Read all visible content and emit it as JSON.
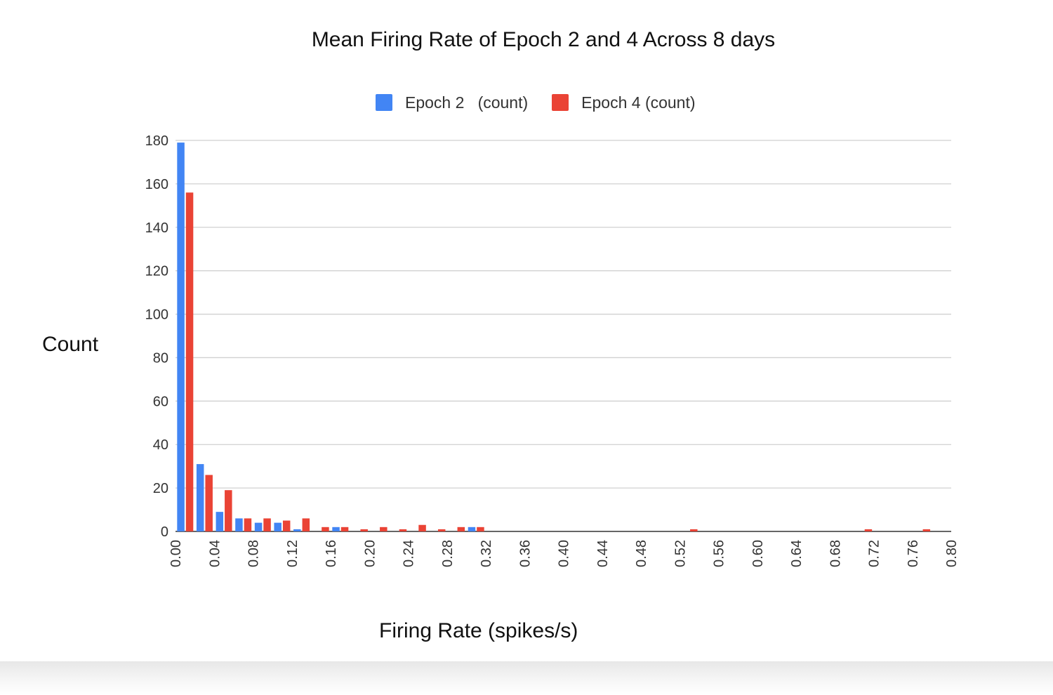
{
  "chart_data": {
    "type": "bar",
    "title": "Mean Firing Rate of Epoch 2 and 4 Across 8 days",
    "xlabel": "Firing Rate (spikes/s)",
    "ylabel": "Count",
    "xlim": [
      0,
      0.8
    ],
    "ylim": [
      0,
      180
    ],
    "bin_width": 0.02,
    "x_ticks": [
      "0.00",
      "0.04",
      "0.08",
      "0.12",
      "0.16",
      "0.20",
      "0.24",
      "0.28",
      "0.32",
      "0.36",
      "0.40",
      "0.44",
      "0.48",
      "0.52",
      "0.56",
      "0.60",
      "0.64",
      "0.68",
      "0.72",
      "0.76",
      "0.80"
    ],
    "y_ticks": [
      "0",
      "20",
      "40",
      "60",
      "80",
      "100",
      "120",
      "140",
      "160",
      "180"
    ],
    "grid": true,
    "legend_position": "top",
    "series": [
      {
        "name": "Epoch 2   (count)",
        "color": "#4285f4",
        "x": [
          0.0,
          0.02,
          0.04,
          0.06,
          0.08,
          0.1,
          0.12,
          0.16,
          0.3
        ],
        "values": [
          179,
          31,
          9,
          6,
          4,
          4,
          1,
          2,
          2
        ]
      },
      {
        "name": "Epoch 4 (count)",
        "color": "#ea4335",
        "x": [
          0.0,
          0.02,
          0.04,
          0.06,
          0.08,
          0.1,
          0.12,
          0.14,
          0.16,
          0.18,
          0.2,
          0.22,
          0.24,
          0.26,
          0.28,
          0.3,
          0.52,
          0.7,
          0.76
        ],
        "values": [
          156,
          26,
          19,
          6,
          6,
          5,
          6,
          2,
          2,
          1,
          2,
          1,
          3,
          1,
          2,
          2,
          1,
          1,
          1
        ]
      }
    ]
  }
}
